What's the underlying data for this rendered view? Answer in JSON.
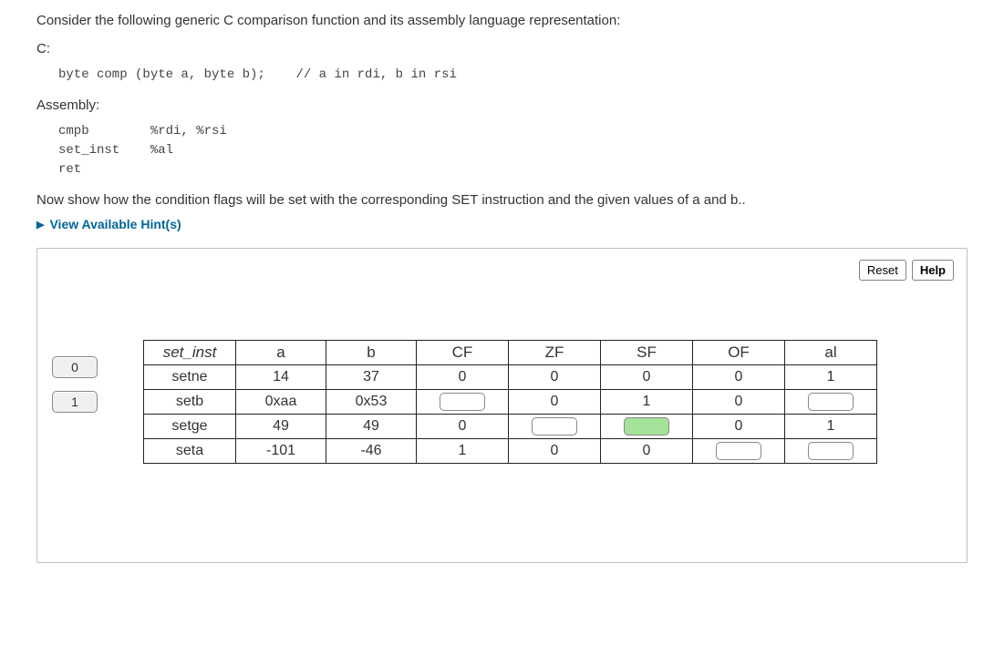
{
  "question": {
    "intro": "Consider the following generic C comparison function and its assembly language representation:",
    "c_label": "C:",
    "c_code": "byte comp (byte a, byte b);    // a in rdi, b in rsi",
    "asm_label": "Assembly:",
    "asm_code": "cmpb        %rdi, %rsi\nset_inst    %al\nret",
    "task": "Now show how the condition flags will be set with the corresponding SET instruction and the given values of a and b..",
    "hints_label": "View Available Hint(s)"
  },
  "panel": {
    "reset_label": "Reset",
    "help_label": "Help"
  },
  "bank": {
    "tiles": [
      "0",
      "1"
    ]
  },
  "table": {
    "headers": [
      "set_inst",
      "a",
      "b",
      "CF",
      "ZF",
      "SF",
      "OF",
      "al"
    ],
    "rows": [
      {
        "inst": "setne",
        "a": "14",
        "b": "37",
        "CF": "0",
        "ZF": "0",
        "SF": "0",
        "OF": "0",
        "al": "1",
        "slots": {
          "CF": false,
          "ZF": false,
          "SF": false,
          "OF": false,
          "al": false
        }
      },
      {
        "inst": "setb",
        "a": "0xaa",
        "b": "0x53",
        "CF": "",
        "ZF": "0",
        "SF": "1",
        "OF": "0",
        "al": "",
        "slots": {
          "CF": true,
          "ZF": false,
          "SF": false,
          "OF": false,
          "al": true
        }
      },
      {
        "inst": "setge",
        "a": "49",
        "b": "49",
        "CF": "0",
        "ZF": "",
        "SF": "",
        "OF": "0",
        "al": "1",
        "slots": {
          "CF": false,
          "ZF": true,
          "SF": "green",
          "OF": false,
          "al": false
        }
      },
      {
        "inst": "seta",
        "a": "-101",
        "b": "-46",
        "CF": "1",
        "ZF": "0",
        "SF": "0",
        "OF": "",
        "al": "",
        "slots": {
          "CF": false,
          "ZF": false,
          "SF": false,
          "OF": true,
          "al": true
        }
      }
    ]
  }
}
